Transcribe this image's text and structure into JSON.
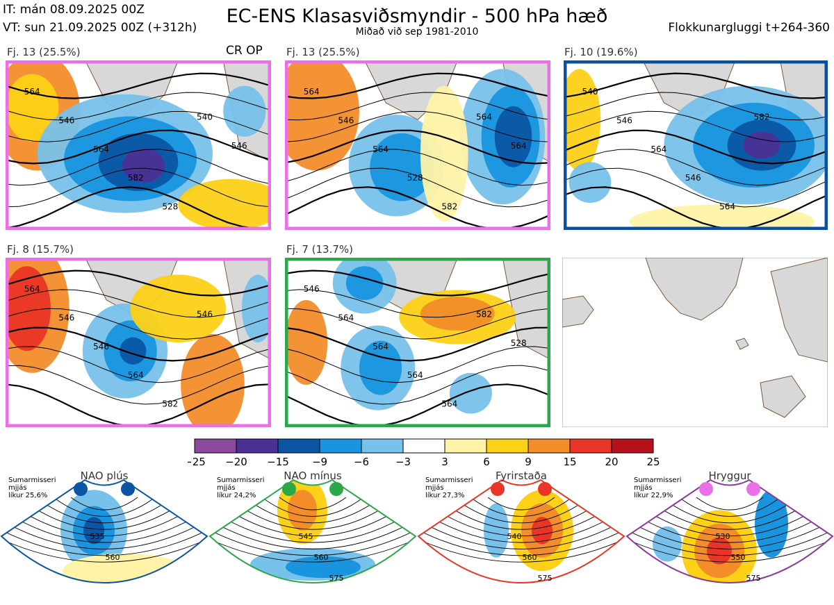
{
  "header": {
    "it": "IT: mán 08.09.2025 00Z",
    "vt": "VT: sun 21.09.2025 00Z  (+312h)",
    "title": "EC-ENS Klasasviðsmyndir - 500 hPa hæð",
    "subtitle": "Miðað við sep 1981-2010",
    "window": "Flokkunargluggi t+264-360"
  },
  "chart_data": [
    {
      "type": "heatmap",
      "panel": "cluster-1",
      "label": "Fj. 13 (25.5%)",
      "members": 13,
      "share_pct": 25.5,
      "annotation": "CR OP",
      "frame_color": "#ea6fe8",
      "contour_labels": [
        "564",
        "546",
        "564",
        "582",
        "528",
        "540",
        "546"
      ]
    },
    {
      "type": "heatmap",
      "panel": "cluster-2",
      "label": "Fj. 13 (25.5%)",
      "members": 13,
      "share_pct": 25.5,
      "frame_color": "#ea6fe8",
      "contour_labels": [
        "564",
        "546",
        "564",
        "528",
        "582",
        "564",
        "564"
      ]
    },
    {
      "type": "heatmap",
      "panel": "cluster-3",
      "label": "Fj. 10 (19.6%)",
      "members": 10,
      "share_pct": 19.6,
      "frame_color": "#0b4fa0",
      "contour_labels": [
        "540",
        "546",
        "564",
        "546",
        "564",
        "582"
      ]
    },
    {
      "type": "heatmap",
      "panel": "cluster-4",
      "label": "Fj. 8 (15.7%)",
      "members": 8,
      "share_pct": 15.7,
      "frame_color": "#ea6fe8",
      "contour_labels": [
        "564",
        "546",
        "546",
        "564",
        "582",
        "546"
      ]
    },
    {
      "type": "heatmap",
      "panel": "cluster-5",
      "label": "Fj. 7 (13.7%)",
      "members": 7,
      "share_pct": 13.7,
      "frame_color": "#2aa84a",
      "contour_labels": [
        "546",
        "564",
        "564",
        "564",
        "564",
        "582",
        "528"
      ]
    }
  ],
  "colorbar": {
    "ticks": [
      "−25",
      "−20",
      "−15",
      "−9",
      "−6",
      "−3",
      "3",
      "6",
      "9",
      "15",
      "20",
      "25"
    ],
    "colors": [
      "#8b4a9c",
      "#4b3193",
      "#0b56a4",
      "#1895de",
      "#78c1ea",
      "#ffffff",
      "#fff3a8",
      "#fcd117",
      "#f28d2a",
      "#e93526",
      "#b5121b"
    ]
  },
  "regimes": [
    {
      "name": "NAO plús",
      "note": "Sumarmisseri\nmjjás\nlíkur 25,6%",
      "dot_color": "#0b56a4",
      "frame_color": "#0b56a4",
      "contours": [
        "535",
        "560"
      ]
    },
    {
      "name": "NAO mínus",
      "note": "Sumarmisseri\nmjjás\nlíkur 24,2%",
      "dot_color": "#2aa84a",
      "frame_color": "#2aa84a",
      "contours": [
        "545",
        "560",
        "575"
      ]
    },
    {
      "name": "Fyrirstaða",
      "note": "Sumarmisseri\nmjjás\nlíkur 27,3%",
      "dot_color": "#e93526",
      "frame_color": "#e93526",
      "contours": [
        "540",
        "560",
        "575"
      ]
    },
    {
      "name": "Hryggur",
      "note": "Sumarmisseri\nmjjás\nlíkur 22,9%",
      "dot_color": "#ea6fe8",
      "frame_color": "#8b3a9c",
      "contours": [
        "530",
        "550",
        "575"
      ]
    }
  ]
}
